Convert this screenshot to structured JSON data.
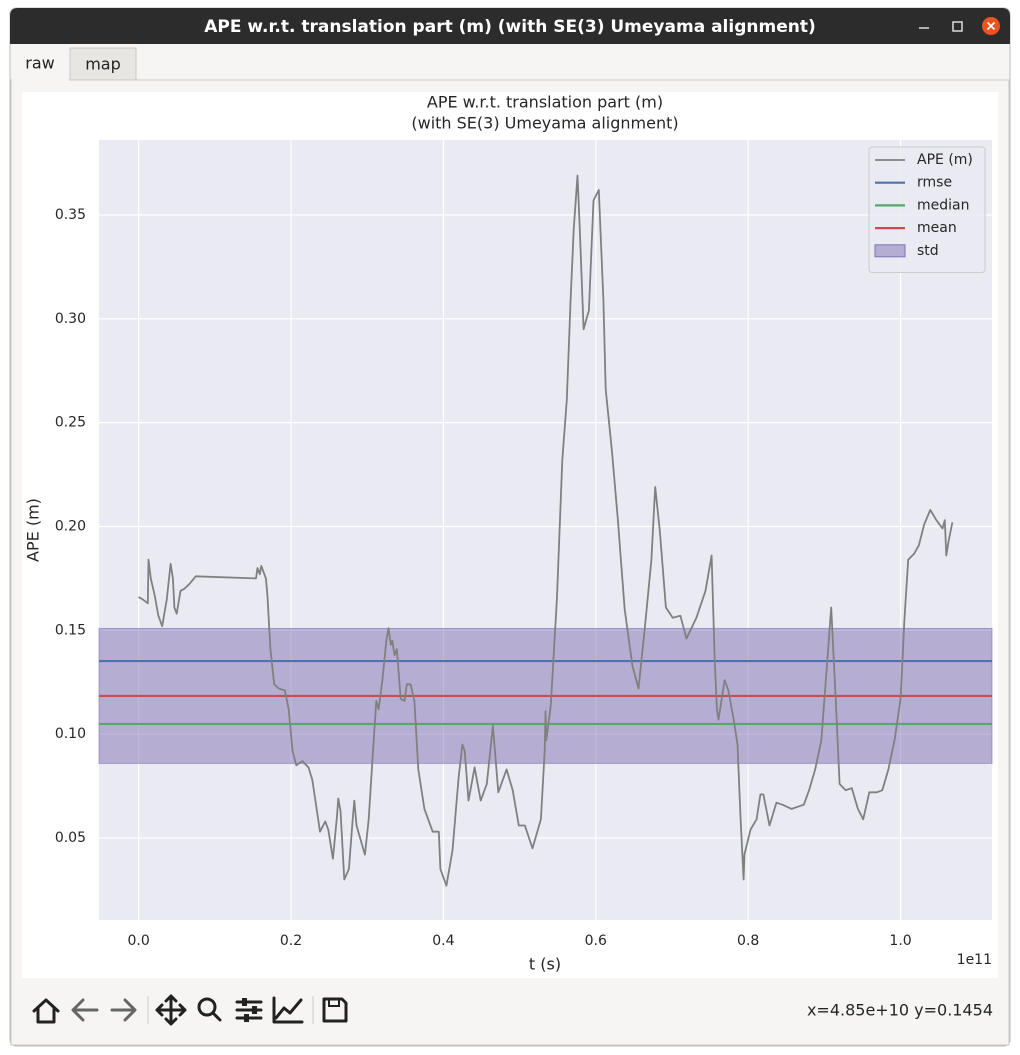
{
  "window": {
    "title": "APE w.r.t. translation part (m) (with SE(3) Umeyama alignment)"
  },
  "tabs": [
    "raw",
    "map"
  ],
  "status": "x=4.85e+10 y=0.1454",
  "chart_data": {
    "type": "line",
    "title": "APE w.r.t. translation part (m)",
    "subtitle": "(with SE(3) Umeyama alignment)",
    "x_label": "t (s)",
    "y_label": "APE (m)",
    "x_offset_label": "1e11",
    "xlim": [
      -0.052,
      1.12
    ],
    "ylim": [
      0.0105,
      0.3861
    ],
    "xticks": [
      {
        "value": 0,
        "label": "0.0"
      },
      {
        "value": 0.2,
        "label": "0.2"
      },
      {
        "value": 0.4,
        "label": "0.4"
      },
      {
        "value": 0.6,
        "label": "0.6"
      },
      {
        "value": 0.8,
        "label": "0.8"
      },
      {
        "value": 1,
        "label": "1.0"
      }
    ],
    "yticks": [
      0.05,
      {
        "value": 0.1,
        "label": "0.10"
      },
      0.15,
      {
        "value": 0.2,
        "label": "0.20"
      },
      0.25,
      {
        "value": 0.3,
        "label": "0.30"
      },
      0.35
    ],
    "grid": true,
    "legend": "upper right",
    "x": [
      0.0,
      0.005,
      0.012,
      0.013,
      0.016,
      0.021,
      0.026,
      0.031,
      0.037,
      0.042,
      0.045,
      0.047,
      0.05,
      0.055,
      0.06,
      0.066,
      0.075,
      0.154,
      0.156,
      0.159,
      0.161,
      0.167,
      0.169,
      0.173,
      0.178,
      0.184,
      0.192,
      0.197,
      0.202,
      0.207,
      0.215,
      0.223,
      0.228,
      0.232,
      0.238,
      0.245,
      0.249,
      0.255,
      0.26,
      0.262,
      0.265,
      0.27,
      0.276,
      0.281,
      0.283,
      0.286,
      0.297,
      0.302,
      0.307,
      0.312,
      0.315,
      0.32,
      0.325,
      0.328,
      0.331,
      0.333,
      0.336,
      0.339,
      0.344,
      0.349,
      0.352,
      0.357,
      0.362,
      0.367,
      0.375,
      0.386,
      0.394,
      0.396,
      0.404,
      0.412,
      0.42,
      0.425,
      0.428,
      0.433,
      0.441,
      0.449,
      0.457,
      0.465,
      0.472,
      0.483,
      0.491,
      0.499,
      0.507,
      0.517,
      0.528,
      0.533,
      0.534,
      0.535,
      0.541,
      0.549,
      0.556,
      0.562,
      0.567,
      0.571,
      0.576,
      0.579,
      0.584,
      0.591,
      0.597,
      0.604,
      0.61,
      0.613,
      0.621,
      0.629,
      0.638,
      0.648,
      0.656,
      0.664,
      0.673,
      0.678,
      0.684,
      0.692,
      0.701,
      0.711,
      0.719,
      0.732,
      0.744,
      0.752,
      0.756,
      0.759,
      0.761,
      0.769,
      0.774,
      0.781,
      0.786,
      0.79,
      0.794,
      0.795,
      0.803,
      0.811,
      0.816,
      0.82,
      0.828,
      0.837,
      0.845,
      0.857,
      0.873,
      0.88,
      0.888,
      0.896,
      0.904,
      0.909,
      0.915,
      0.92,
      0.928,
      0.936,
      0.944,
      0.951,
      0.959,
      0.969,
      0.976,
      0.984,
      0.992,
      1.0,
      1.005,
      1.01,
      1.018,
      1.024,
      1.031,
      1.039,
      1.047,
      1.055,
      1.058,
      1.06,
      1.063,
      1.068
    ],
    "series": [
      {
        "name": "APE (m)",
        "color": "#808080",
        "values": [
          0.166,
          0.165,
          0.163,
          0.184,
          0.175,
          0.167,
          0.157,
          0.152,
          0.165,
          0.182,
          0.175,
          0.161,
          0.158,
          0.169,
          0.17,
          0.172,
          0.176,
          0.175,
          0.18,
          0.177,
          0.181,
          0.175,
          0.167,
          0.141,
          0.124,
          0.122,
          0.121,
          0.112,
          0.092,
          0.085,
          0.087,
          0.084,
          0.078,
          0.068,
          0.053,
          0.058,
          0.054,
          0.04,
          0.059,
          0.069,
          0.063,
          0.03,
          0.035,
          0.059,
          0.068,
          0.056,
          0.042,
          0.059,
          0.088,
          0.116,
          0.112,
          0.126,
          0.145,
          0.151,
          0.143,
          0.145,
          0.138,
          0.141,
          0.117,
          0.116,
          0.124,
          0.124,
          0.116,
          0.083,
          0.064,
          0.053,
          0.053,
          0.035,
          0.027,
          0.044,
          0.079,
          0.095,
          0.092,
          0.068,
          0.084,
          0.068,
          0.076,
          0.104,
          0.072,
          0.083,
          0.073,
          0.056,
          0.056,
          0.045,
          0.059,
          0.092,
          0.111,
          0.097,
          0.114,
          0.165,
          0.232,
          0.261,
          0.309,
          0.343,
          0.369,
          0.343,
          0.295,
          0.304,
          0.357,
          0.362,
          0.309,
          0.266,
          0.237,
          0.203,
          0.16,
          0.133,
          0.122,
          0.15,
          0.184,
          0.219,
          0.198,
          0.161,
          0.156,
          0.157,
          0.146,
          0.156,
          0.169,
          0.186,
          0.136,
          0.112,
          0.107,
          0.126,
          0.121,
          0.107,
          0.095,
          0.059,
          0.03,
          0.042,
          0.054,
          0.059,
          0.071,
          0.071,
          0.056,
          0.067,
          0.066,
          0.064,
          0.066,
          0.073,
          0.083,
          0.097,
          0.136,
          0.161,
          0.116,
          0.076,
          0.073,
          0.074,
          0.064,
          0.059,
          0.072,
          0.072,
          0.073,
          0.083,
          0.097,
          0.117,
          0.155,
          0.184,
          0.187,
          0.191,
          0.201,
          0.208,
          0.203,
          0.199,
          0.203,
          0.186,
          0.193,
          0.202
        ]
      }
    ],
    "reference_lines": [
      {
        "name": "rmse",
        "color": "#4c72b0",
        "value": 0.1352
      },
      {
        "name": "median",
        "color": "#55a868",
        "value": 0.1049
      },
      {
        "name": "mean",
        "color": "#c44e52",
        "value": 0.1184
      }
    ],
    "std_band": {
      "name": "std",
      "color": "#8172b2",
      "value": 0.0325
    }
  }
}
